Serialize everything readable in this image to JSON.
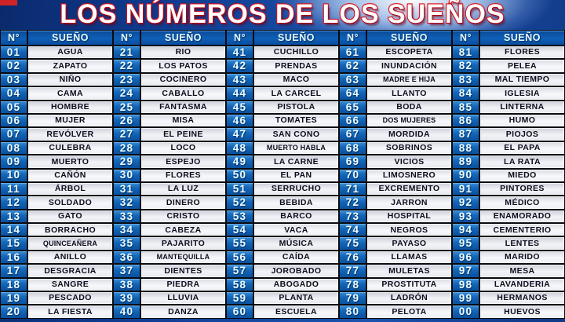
{
  "page": {
    "title": "LOS NÚMEROS DE LOS SUEÑOS"
  },
  "colors": {
    "title_fill": "#ffffff",
    "title_outline": "#df1117",
    "header_blue": "#0e5fb6",
    "number_cell_blue": "#1568ba",
    "dream_cell_light": "#eef0f5",
    "border_black": "#0a0b10",
    "background_blue": "#16489f",
    "corner_mark_red": "#cf2327"
  },
  "table": {
    "header": {
      "number_label": "N°",
      "dream_label": "SUEÑO"
    },
    "columns": [
      [
        {
          "n": "01",
          "dream": "AGUA"
        },
        {
          "n": "02",
          "dream": "ZAPATO"
        },
        {
          "n": "03",
          "dream": "NIÑO"
        },
        {
          "n": "04",
          "dream": "CAMA"
        },
        {
          "n": "05",
          "dream": "HOMBRE"
        },
        {
          "n": "06",
          "dream": "MUJER"
        },
        {
          "n": "07",
          "dream": "REVÓLVER"
        },
        {
          "n": "08",
          "dream": "CULEBRA"
        },
        {
          "n": "09",
          "dream": "MUERTO"
        },
        {
          "n": "10",
          "dream": "CAÑÓN"
        },
        {
          "n": "11",
          "dream": "ÁRBOL"
        },
        {
          "n": "12",
          "dream": "SOLDADO"
        },
        {
          "n": "13",
          "dream": "GATO"
        },
        {
          "n": "14",
          "dream": "BORRACHO"
        },
        {
          "n": "15",
          "dream": "QUINCEAÑERA"
        },
        {
          "n": "16",
          "dream": "ANILLO"
        },
        {
          "n": "17",
          "dream": "DESGRACIA"
        },
        {
          "n": "18",
          "dream": "SANGRE"
        },
        {
          "n": "19",
          "dream": "PESCADO"
        },
        {
          "n": "20",
          "dream": "LA FIESTA"
        }
      ],
      [
        {
          "n": "21",
          "dream": "RIO"
        },
        {
          "n": "22",
          "dream": "LOS PATOS"
        },
        {
          "n": "23",
          "dream": "COCINERO"
        },
        {
          "n": "24",
          "dream": "CABALLO"
        },
        {
          "n": "25",
          "dream": "FANTASMA"
        },
        {
          "n": "26",
          "dream": "MISA"
        },
        {
          "n": "27",
          "dream": "EL PEINE"
        },
        {
          "n": "28",
          "dream": "LOCO"
        },
        {
          "n": "29",
          "dream": "ESPEJO"
        },
        {
          "n": "30",
          "dream": "FLORES"
        },
        {
          "n": "31",
          "dream": "LA LUZ"
        },
        {
          "n": "32",
          "dream": "DINERO"
        },
        {
          "n": "33",
          "dream": "CRISTO"
        },
        {
          "n": "34",
          "dream": "CABEZA"
        },
        {
          "n": "35",
          "dream": "PAJARITO"
        },
        {
          "n": "36",
          "dream": "MANTEQUILLA"
        },
        {
          "n": "37",
          "dream": "DIENTES"
        },
        {
          "n": "38",
          "dream": "PIEDRA"
        },
        {
          "n": "39",
          "dream": "LLUVIA"
        },
        {
          "n": "40",
          "dream": "DANZA"
        }
      ],
      [
        {
          "n": "41",
          "dream": "CUCHILLO"
        },
        {
          "n": "42",
          "dream": "PRENDAS"
        },
        {
          "n": "43",
          "dream": "MACO"
        },
        {
          "n": "44",
          "dream": "LA CARCEL"
        },
        {
          "n": "45",
          "dream": "PISTOLA"
        },
        {
          "n": "46",
          "dream": "TOMATES"
        },
        {
          "n": "47",
          "dream": "SAN CONO"
        },
        {
          "n": "48",
          "dream": "MUERTO HABLA"
        },
        {
          "n": "49",
          "dream": "LA CARNE"
        },
        {
          "n": "50",
          "dream": "EL PAN"
        },
        {
          "n": "51",
          "dream": "SERRUCHO"
        },
        {
          "n": "52",
          "dream": "BEBIDA"
        },
        {
          "n": "53",
          "dream": "BARCO"
        },
        {
          "n": "54",
          "dream": "VACA"
        },
        {
          "n": "55",
          "dream": "MÚSICA"
        },
        {
          "n": "56",
          "dream": "CAÍDA"
        },
        {
          "n": "57",
          "dream": "JOROBADO"
        },
        {
          "n": "58",
          "dream": "ABOGADO"
        },
        {
          "n": "59",
          "dream": "PLANTA"
        },
        {
          "n": "60",
          "dream": "ESCUELA"
        }
      ],
      [
        {
          "n": "61",
          "dream": "ESCOPETA"
        },
        {
          "n": "62",
          "dream": "INUNDACIÓN"
        },
        {
          "n": "63",
          "dream": "MADRE E HIJA"
        },
        {
          "n": "64",
          "dream": "LLANTO"
        },
        {
          "n": "65",
          "dream": "BODA"
        },
        {
          "n": "66",
          "dream": "DOS MUJERES"
        },
        {
          "n": "67",
          "dream": "MORDIDA"
        },
        {
          "n": "68",
          "dream": "SOBRINOS"
        },
        {
          "n": "69",
          "dream": "VICIOS"
        },
        {
          "n": "70",
          "dream": "LIMOSNERO"
        },
        {
          "n": "71",
          "dream": "EXCREMENTO"
        },
        {
          "n": "72",
          "dream": "JARRON"
        },
        {
          "n": "73",
          "dream": "HOSPITAL"
        },
        {
          "n": "74",
          "dream": "NEGROS"
        },
        {
          "n": "75",
          "dream": "PAYASO"
        },
        {
          "n": "76",
          "dream": "LLAMAS"
        },
        {
          "n": "77",
          "dream": "MULETAS"
        },
        {
          "n": "78",
          "dream": "PROSTITUTA"
        },
        {
          "n": "79",
          "dream": "LADRÓN"
        },
        {
          "n": "80",
          "dream": "PELOTA"
        }
      ],
      [
        {
          "n": "81",
          "dream": "FLORES"
        },
        {
          "n": "82",
          "dream": "PELEA"
        },
        {
          "n": "83",
          "dream": "MAL TIEMPO"
        },
        {
          "n": "84",
          "dream": "IGLESIA"
        },
        {
          "n": "85",
          "dream": "LINTERNA"
        },
        {
          "n": "86",
          "dream": "HUMO"
        },
        {
          "n": "87",
          "dream": "PIOJOS"
        },
        {
          "n": "88",
          "dream": "EL PAPA"
        },
        {
          "n": "89",
          "dream": "LA RATA"
        },
        {
          "n": "90",
          "dream": "MIEDO"
        },
        {
          "n": "91",
          "dream": "PINTORES"
        },
        {
          "n": "92",
          "dream": "MÉDICO"
        },
        {
          "n": "93",
          "dream": "ENAMORADO"
        },
        {
          "n": "94",
          "dream": "CEMENTERIO"
        },
        {
          "n": "95",
          "dream": "LENTES"
        },
        {
          "n": "96",
          "dream": "MARIDO"
        },
        {
          "n": "97",
          "dream": "MESA"
        },
        {
          "n": "98",
          "dream": "LAVANDERIA"
        },
        {
          "n": "99",
          "dream": "HERMANOS"
        },
        {
          "n": "00",
          "dream": "HUEVOS"
        }
      ]
    ]
  }
}
